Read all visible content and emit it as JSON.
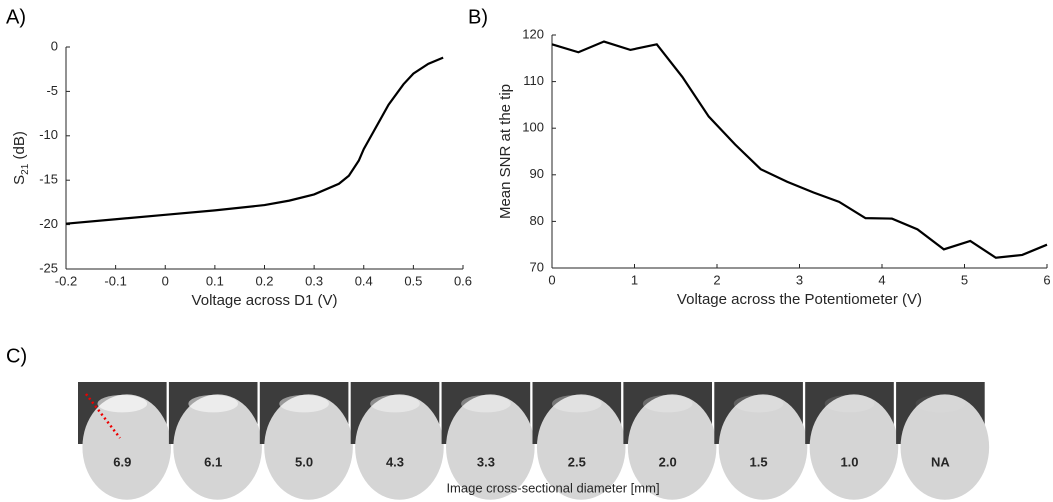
{
  "chart_data": [
    {
      "type": "line",
      "panel_label": "A)",
      "xlabel": "Voltage across D1 (V)",
      "ylabel": {
        "main": "S",
        "sub": "21",
        "unit": " (dB)"
      },
      "xlim": [
        -0.2,
        0.6
      ],
      "xticks": [
        -0.2,
        -0.1,
        0,
        0.1,
        0.2,
        0.3,
        0.4,
        0.5,
        0.6
      ],
      "ylim": [
        -25,
        0
      ],
      "yticks": [
        -25,
        -20,
        -15,
        -10,
        -5,
        0
      ],
      "series": [
        {
          "color": "#000000",
          "x": [
            -0.2,
            -0.1,
            0,
            0.1,
            0.2,
            0.25,
            0.3,
            0.35,
            0.37,
            0.39,
            0.4,
            0.42,
            0.45,
            0.48,
            0.5,
            0.53,
            0.56
          ],
          "values": [
            -19.9,
            -19.4,
            -18.9,
            -18.4,
            -17.8,
            -17.3,
            -16.6,
            -15.4,
            -14.5,
            -12.8,
            -11.5,
            -9.5,
            -6.5,
            -4.2,
            -3,
            -1.9,
            -1.2
          ]
        }
      ]
    },
    {
      "type": "line",
      "panel_label": "B)",
      "xlabel": "Voltage across the Potentiometer (V)",
      "ylabel": {
        "main": "Mean SNR at the tip"
      },
      "xlim": [
        0,
        6
      ],
      "xticks": [
        0,
        1,
        2,
        3,
        4,
        5,
        6
      ],
      "ylim": [
        70,
        120
      ],
      "yticks": [
        70,
        80,
        90,
        100,
        110,
        120
      ],
      "series": [
        {
          "color": "#000000",
          "x": [
            0,
            0.32,
            0.63,
            0.95,
            1.27,
            1.58,
            1.9,
            2.22,
            2.53,
            2.85,
            3.17,
            3.48,
            3.8,
            4.12,
            4.43,
            4.75,
            5.07,
            5.38,
            5.7,
            6
          ],
          "values": [
            118,
            116.3,
            118.6,
            116.8,
            118,
            111,
            102.5,
            96.5,
            91.2,
            88.5,
            86.2,
            84.2,
            80.7,
            80.6,
            78.3,
            74,
            75.8,
            72.2,
            72.8,
            75
          ]
        }
      ]
    }
  ],
  "panel_c": {
    "panel_label": "C)",
    "labels": [
      "6.9",
      "6.1",
      "5.0",
      "4.3",
      "3.3",
      "2.5",
      "2.0",
      "1.5",
      "1.0",
      "NA"
    ],
    "xlabel": "Image cross-sectional diameter [mm]"
  }
}
